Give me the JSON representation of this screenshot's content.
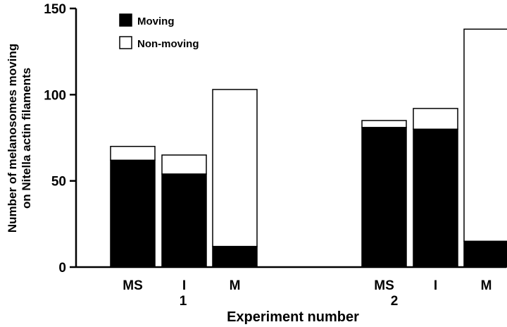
{
  "chart_data": {
    "type": "bar",
    "stacked": true,
    "categories": [
      "MS",
      "I",
      "M",
      "MS",
      "I",
      "M"
    ],
    "groups": [
      {
        "label": "1",
        "categories": [
          "MS",
          "I",
          "M"
        ]
      },
      {
        "label": "2",
        "categories": [
          "MS",
          "I",
          "M"
        ]
      }
    ],
    "series": [
      {
        "name": "Moving",
        "color": "#000000",
        "values": [
          62,
          54,
          12,
          81,
          80,
          15
        ]
      },
      {
        "name": "Non-moving",
        "color": "#ffffff",
        "values": [
          8,
          11,
          91,
          4,
          12,
          123
        ]
      }
    ],
    "totals": [
      70,
      65,
      103,
      85,
      92,
      138
    ],
    "xlabel": "Experiment number",
    "ylabel": [
      "Number of melanosomes moving",
      "on Nitella actin filaments"
    ],
    "ylim": [
      0,
      150
    ],
    "yticks": [
      "0",
      "50",
      "100",
      "150"
    ],
    "legend": {
      "position": "top-left",
      "entries": [
        "Moving",
        "Non-moving"
      ]
    },
    "grid": false
  }
}
